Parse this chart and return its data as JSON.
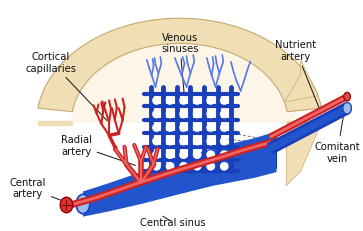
{
  "bg_color": "#ffffff",
  "bone_fill": "#f0deb4",
  "bone_edge": "#c8a86e",
  "artery_color": "#cc2222",
  "artery_light": "#ee6666",
  "vein_color": "#1a3fbb",
  "vein_mid": "#2255cc",
  "vein_light": "#5577ee",
  "central_sinus_fill": "#9bbde8",
  "dashed_color": "#777777",
  "text_color": "#111111",
  "labels": {
    "cortical_cap": "Cortical\ncapillaries",
    "venous_sinuses": "Venous\nsinuses",
    "nutrient_artery": "Nutrient\nartery",
    "radial_artery": "Radial\nartery",
    "central_artery": "Central\nartery",
    "central_sinus": "Central sinus",
    "comitant_vein": "Comitant\nvein"
  }
}
